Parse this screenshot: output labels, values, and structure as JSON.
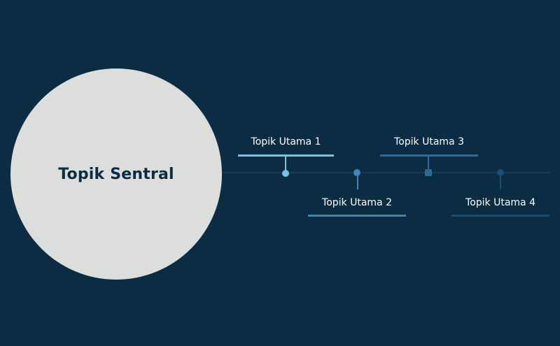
{
  "central_topic": {
    "label": "Topik Sentral",
    "fill_color": "#dcdedb",
    "text_color": "#0c2c43"
  },
  "background_color": "#0c2c43",
  "timeline_color": "#123b58",
  "topics": [
    {
      "label": "Topik Utama 1",
      "position": "above",
      "color": "#7cc2dc",
      "node_shape": "round"
    },
    {
      "label": "Topik Utama 2",
      "position": "below",
      "color": "#3e86b6",
      "node_shape": "round"
    },
    {
      "label": "Topik Utama 3",
      "position": "above",
      "color": "#2f6a96",
      "node_shape": "square"
    },
    {
      "label": "Topik Utama 4",
      "position": "below",
      "color": "#1e4c6e",
      "node_shape": "round"
    }
  ]
}
